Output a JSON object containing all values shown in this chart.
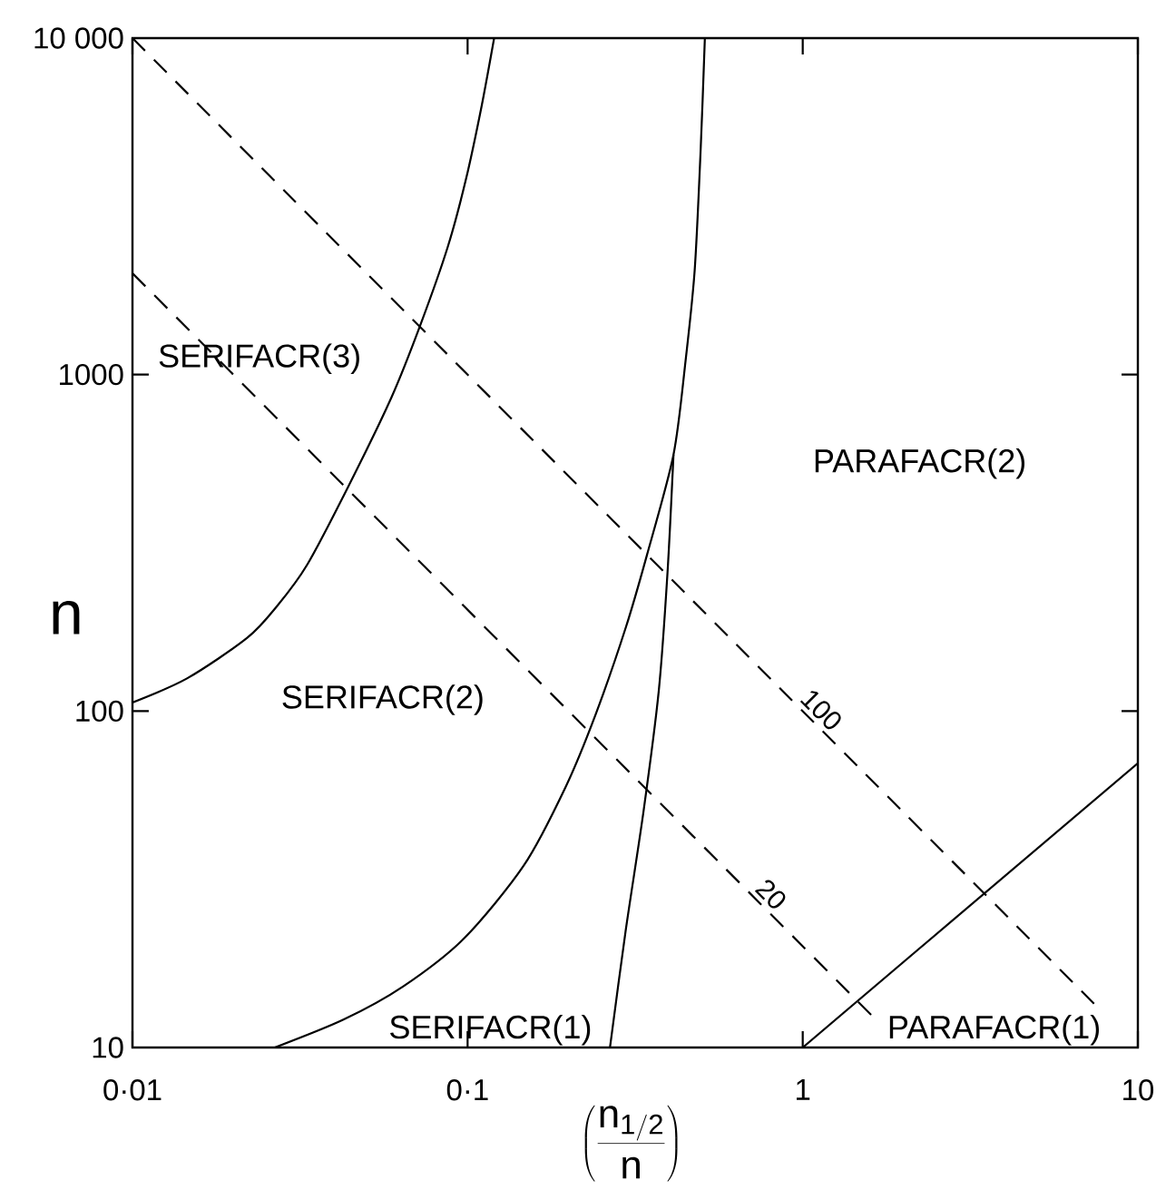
{
  "chart_data": {
    "type": "line",
    "xlabel": "\\left(\\frac{\\mathrm{n}_{\\mathrm{1/2}}}{\\mathrm{n}}\\right)",
    "ylabel": "n",
    "log": "xy",
    "xlim": [
      0.01,
      10
    ],
    "ylim": [
      10,
      10000
    ],
    "xticks": [
      {
        "value": 0.01,
        "label": "0·01"
      },
      {
        "value": 0.1,
        "label": "0·1"
      },
      1,
      10
    ],
    "yticks": [
      10,
      100,
      1000,
      {
        "value": 10000,
        "label": "10 000"
      }
    ],
    "grid": false,
    "legend": false,
    "marker": "none",
    "series": [
      {
        "color": "#000000",
        "line_style": "solid",
        "x": [
          0.01,
          0.01455,
          0.022,
          0.027,
          0.0332,
          0.0443,
          0.0594,
          0.0724,
          0.0873,
          0.0989,
          0.11,
          0.12
        ],
        "values": [
          106,
          125,
          165,
          205,
          272,
          470,
          860,
          1410,
          2400,
          3810,
          6250,
          10000
        ]
      },
      {
        "color": "#000000",
        "line_style": "solid",
        "x": [
          0.0266,
          0.0426,
          0.0643,
          0.0976,
          0.147,
          0.196,
          0.241,
          0.297,
          0.343,
          0.4115,
          0.447,
          0.476,
          0.496,
          0.5105
        ],
        "values": [
          10,
          12.1,
          15.2,
          21.1,
          34.7,
          59.4,
          97.7,
          178,
          291,
          578,
          1097,
          2042,
          4670,
          10000
        ]
      },
      {
        "color": "#000000",
        "line_style": "solid",
        "x": [
          0.266,
          0.296,
          0.335,
          0.372,
          0.395,
          0.4115
        ],
        "values": [
          10,
          22.1,
          50.4,
          115,
          258,
          578
        ]
      },
      {
        "name": "100",
        "color": "#000000",
        "line_style": "dashed",
        "x": [
          0.01,
          7.4
        ],
        "values": [
          10000,
          13.5
        ]
      },
      {
        "name": "20",
        "color": "#000000",
        "line_style": "dashed",
        "x": [
          0.01,
          1.6
        ],
        "values": [
          2000,
          12.5
        ]
      },
      {
        "color": "#000000",
        "line_style": "solid",
        "x": [
          1,
          10
        ],
        "values": [
          10,
          70
        ]
      }
    ],
    "annotations": [
      "SERIFACR(3)",
      "SERIFACR(2)",
      "SERIFACR(1)",
      "PARAFACR(2)",
      "PARAFACR(1)"
    ]
  }
}
